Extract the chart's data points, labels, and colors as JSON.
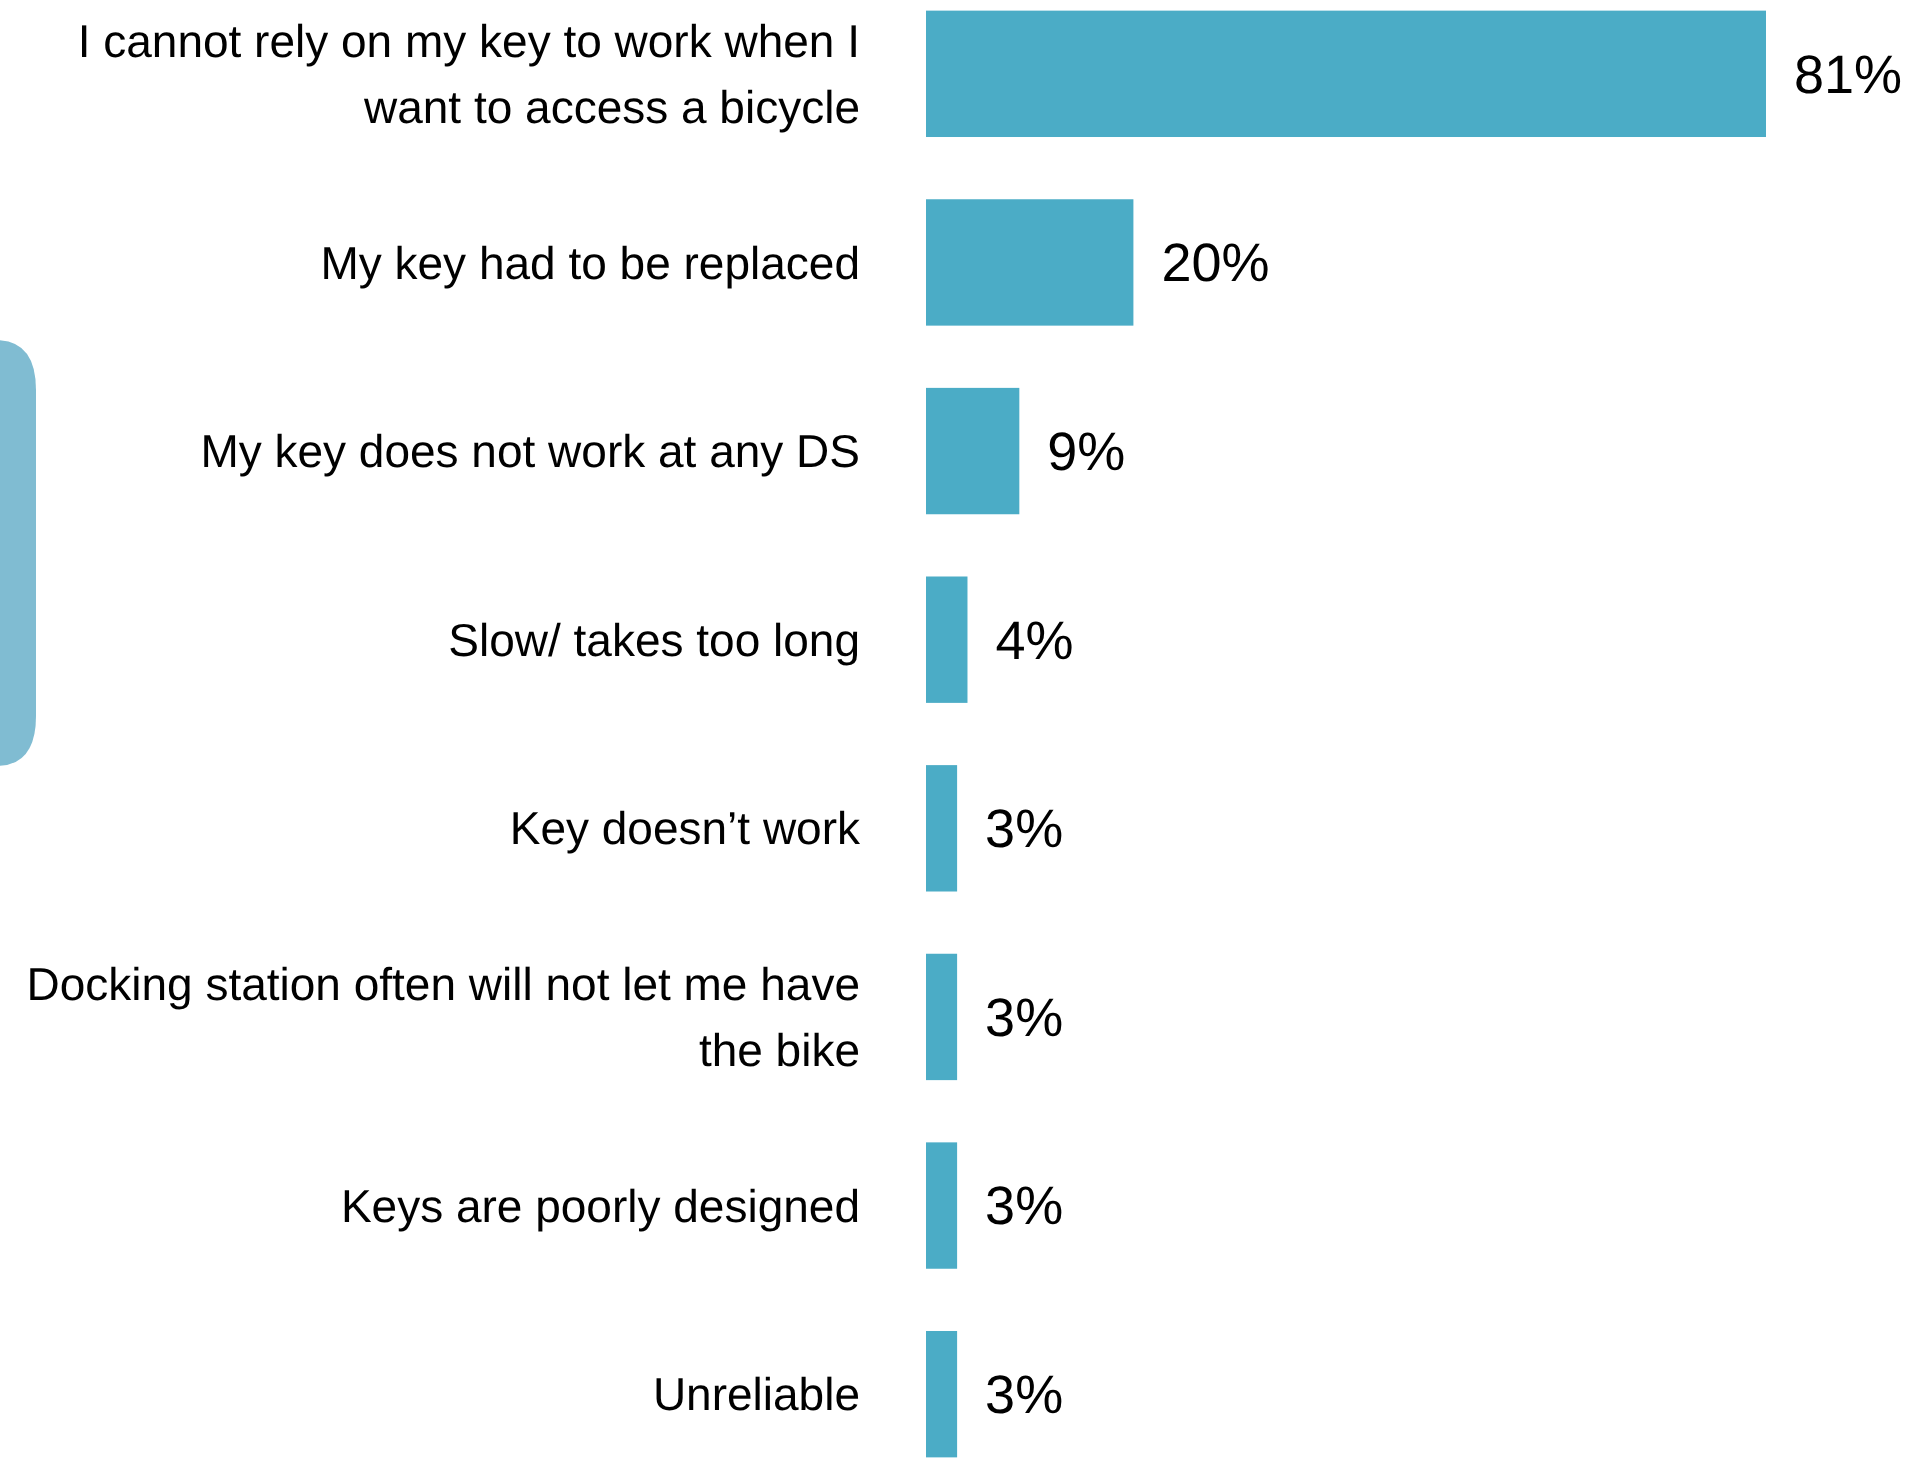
{
  "chart_data": {
    "type": "bar",
    "orientation": "horizontal",
    "categories": [
      "I cannot rely on my key to work when I want to access a bicycle",
      "My key had to be replaced",
      "My key does not work at any DS",
      "Slow/ takes too long",
      "Key doesn’t work",
      "Docking station often will not let me have the bike",
      "Keys are poorly designed",
      "Unreliable"
    ],
    "values": [
      81,
      20,
      9,
      4,
      3,
      3,
      3,
      3
    ],
    "value_labels": [
      "81%",
      "20%",
      "9%",
      "4%",
      "3%",
      "3%",
      "3%",
      "3%"
    ],
    "color": "#4bacc6"
  }
}
